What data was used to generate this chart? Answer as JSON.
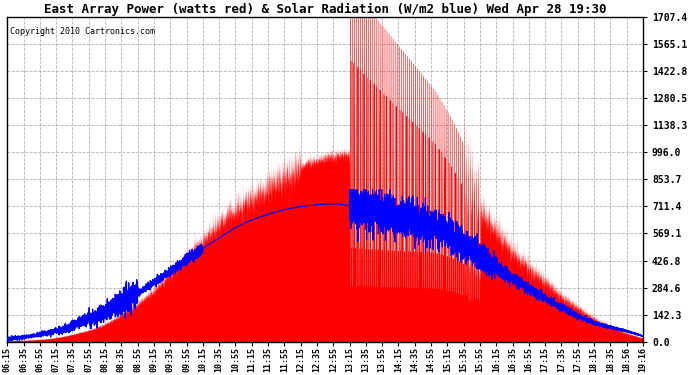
{
  "title": "East Array Power (watts red) & Solar Radiation (W/m2 blue) Wed Apr 28 19:30",
  "copyright": "Copyright 2010 Cartronics.com",
  "ymax": 1707.4,
  "ymin": 0.0,
  "yticks": [
    0.0,
    142.3,
    284.6,
    426.8,
    569.1,
    711.4,
    853.7,
    996.0,
    1138.3,
    1280.5,
    1422.8,
    1565.1,
    1707.4
  ],
  "background_color": "#ffffff",
  "plot_bg_color": "#ffffff",
  "red_color": "#ff0000",
  "blue_color": "#0000ff",
  "grid_color": "#aaaaaa",
  "time_labels": [
    "06:15",
    "06:35",
    "06:55",
    "07:15",
    "07:35",
    "07:55",
    "08:15",
    "08:35",
    "08:55",
    "09:15",
    "09:35",
    "09:55",
    "10:15",
    "10:35",
    "10:55",
    "11:15",
    "11:35",
    "11:55",
    "12:15",
    "12:35",
    "12:55",
    "13:15",
    "13:35",
    "13:55",
    "14:15",
    "14:35",
    "14:55",
    "15:15",
    "15:35",
    "15:55",
    "16:15",
    "16:35",
    "16:55",
    "17:15",
    "17:35",
    "17:55",
    "18:15",
    "18:35",
    "18:56",
    "19:16"
  ],
  "n_points": 40,
  "seed": 42
}
